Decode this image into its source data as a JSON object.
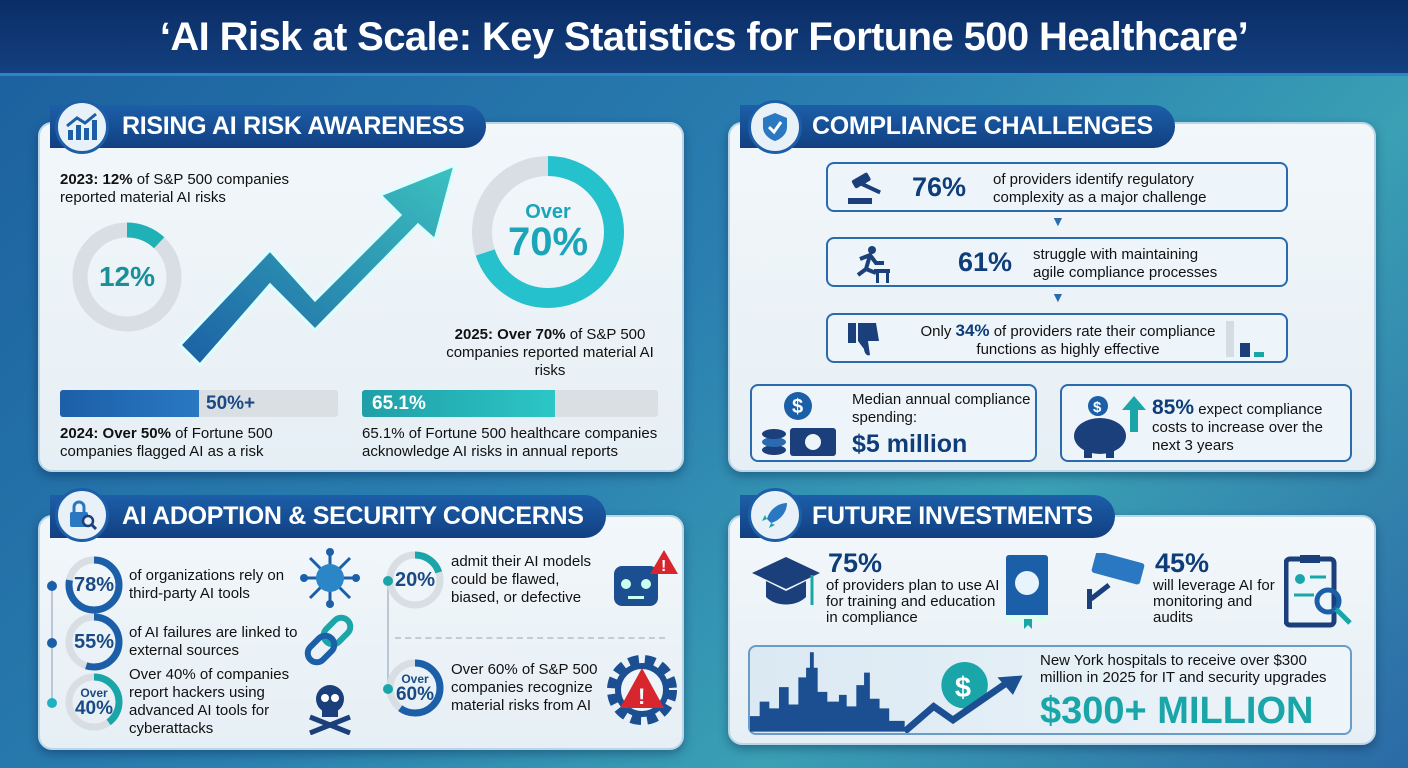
{
  "title": "‘AI Risk at Scale: Key Statistics for Fortune 500 Healthcare’",
  "colors": {
    "navy": "#0e3d7a",
    "blue": "#1c5fa8",
    "teal": "#1aa5a8",
    "red": "#d8262e",
    "panel": "#eef5fa"
  },
  "awareness": {
    "heading": "RISING AI RISK AWARENESS",
    "icon": "chart-growth-icon",
    "stat_2023": {
      "bold": "2023: 12%",
      "text": " of S&P 500 companies reported material AI risks",
      "donut_label": "12%",
      "value": 12
    },
    "stat_2025": {
      "bold": "2025: Over 70%",
      "text": " of S&P 500 companies reported material AI risks",
      "donut_over": "Over",
      "donut_value": "70%",
      "value": 70
    },
    "stat_2024": {
      "bold": "2024: Over 50%",
      "text": " of Fortune 500 companies flagged AI as a risk",
      "bar_label": "50%+",
      "value": 50
    },
    "stat_hc": {
      "text": "65.1% of Fortune 500 healthcare companies acknowledge AI risks in annual reports",
      "bar_label": "65.1%",
      "value": 65.1
    }
  },
  "compliance": {
    "heading": "COMPLIANCE CHALLENGES",
    "icon": "shield-gear-icon",
    "rows": [
      {
        "icon": "gavel-icon",
        "value": "76%",
        "text": "of providers identify regulatory complexity as a major challenge"
      },
      {
        "icon": "hurdle-runner-icon",
        "value": "61%",
        "text": "struggle with maintaining agile compliance processes"
      },
      {
        "icon": "thumbs-down-icon",
        "prefix": "Only ",
        "value": "34%",
        "text": " of providers rate their compliance functions as highly effective"
      }
    ],
    "spending": {
      "icon": "money-coins-icon",
      "label": "Median annual compliance spending:",
      "value": "$5 million"
    },
    "costs": {
      "icon": "piggy-bank-icon",
      "value": "85%",
      "text": " expect compliance costs to increase over the next 3 years"
    }
  },
  "adoption": {
    "heading": "AI ADOPTION & SECURITY CONCERNS",
    "icon": "lock-search-icon",
    "left": [
      {
        "value": "78%",
        "pct": 78,
        "text": "of organizations rely on third-party AI tools",
        "icon": "network-icon"
      },
      {
        "value": "55%",
        "pct": 55,
        "text": "of AI failures are linked to external sources",
        "icon": "broken-link-icon"
      },
      {
        "over": "Over",
        "value": "40%",
        "pct": 40,
        "text": "Over 40% of companies report hackers using advanced AI tools for cyberattacks",
        "icon": "skull-icon"
      }
    ],
    "right": [
      {
        "value": "20%",
        "pct": 20,
        "text": "admit their AI models could be flawed, biased, or defective",
        "icon": "broken-robot-icon"
      },
      {
        "over": "Over",
        "value": "60%",
        "pct": 60,
        "text": "Over 60% of S&P 500 companies recognize material risks from AI",
        "icon": "gear-warning-icon"
      }
    ]
  },
  "investments": {
    "heading": "FUTURE INVESTMENTS",
    "icon": "rocket-icon",
    "training": {
      "value": "75%",
      "text": "of providers plan to use AI for training and education in compliance"
    },
    "monitoring": {
      "value": "45%",
      "text": "will leverage AI for monitoring and audits"
    },
    "ny": {
      "text": "New York hospitals to receive over $300 million in 2025 for IT and security upgrades",
      "value": "$300+ MILLION"
    }
  }
}
